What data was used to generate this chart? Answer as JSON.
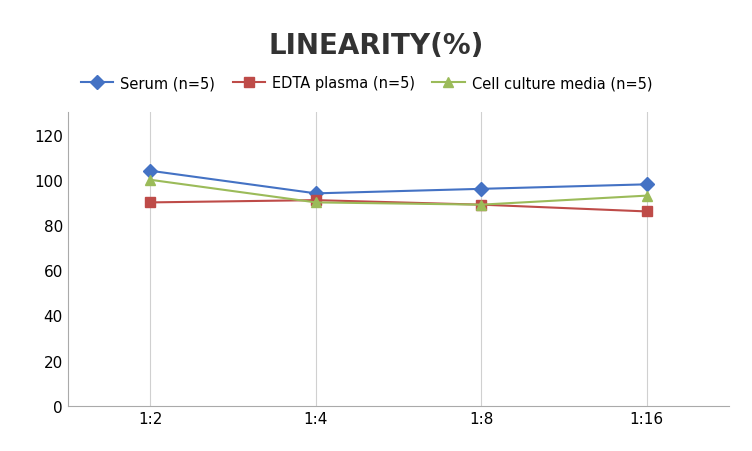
{
  "title": "LINEARITY(%)",
  "x_labels": [
    "1:2",
    "1:4",
    "1:8",
    "1:16"
  ],
  "x_positions": [
    0,
    1,
    2,
    3
  ],
  "series": [
    {
      "name": "Serum (n=5)",
      "values": [
        104,
        94,
        96,
        98
      ],
      "color": "#4472C4",
      "marker": "D",
      "markersize": 7,
      "linewidth": 1.5
    },
    {
      "name": "EDTA plasma (n=5)",
      "values": [
        90,
        91,
        89,
        86
      ],
      "color": "#BE4B48",
      "marker": "s",
      "markersize": 7,
      "linewidth": 1.5
    },
    {
      "name": "Cell culture media (n=5)",
      "values": [
        100,
        90,
        89,
        93
      ],
      "color": "#9BBB59",
      "marker": "^",
      "markersize": 7,
      "linewidth": 1.5
    }
  ],
  "ylim": [
    0,
    130
  ],
  "yticks": [
    0,
    20,
    40,
    60,
    80,
    100,
    120
  ],
  "grid_color": "#D0D0D0",
  "background_color": "#FFFFFF",
  "title_fontsize": 20,
  "title_fontweight": "bold",
  "legend_fontsize": 10.5,
  "tick_fontsize": 11,
  "spine_color": "#AAAAAA"
}
